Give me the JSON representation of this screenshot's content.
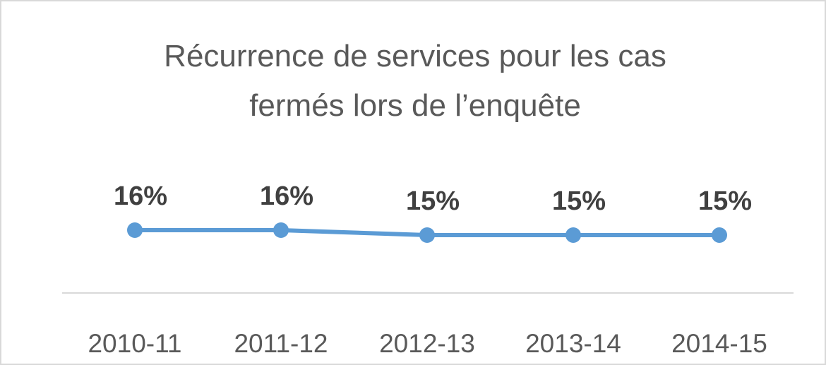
{
  "chart_data": {
    "type": "line",
    "title": [
      "Récurrence de services pour les cas",
      "fermés lors de l’enquête"
    ],
    "categories": [
      "2010-11",
      "2011-12",
      "2012-13",
      "2013-14",
      "2014-15"
    ],
    "series": [
      {
        "values": [
          16,
          16,
          15,
          15,
          15
        ],
        "labels": [
          "16%",
          "16%",
          "15%",
          "15%",
          "15%"
        ]
      }
    ],
    "xlabel": "",
    "ylabel": "",
    "grid": false,
    "legend": "none",
    "colors": {
      "line": "#5b9bd5",
      "axis": "#d9d9d9",
      "text": "#595959",
      "label": "#404040"
    }
  }
}
